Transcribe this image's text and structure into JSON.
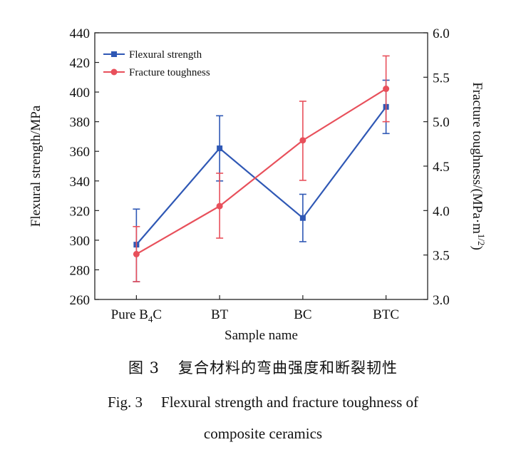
{
  "chart_data": {
    "type": "line",
    "categories": [
      "Pure B4C",
      "BT",
      "BC",
      "BTC"
    ],
    "category_labels": [
      {
        "main": "Pure B",
        "sub": "4",
        "tail": "C"
      },
      {
        "main": "BT",
        "sub": "",
        "tail": ""
      },
      {
        "main": "BC",
        "sub": "",
        "tail": ""
      },
      {
        "main": "BTC",
        "sub": "",
        "tail": ""
      }
    ],
    "xlabel": "Sample name",
    "ylabel_left": "Flexural strength/MPa",
    "ylabel_right": "Fracture toughness/(MPa·m",
    "ylabel_right_sup": "1/2",
    "ylabel_right_close": ")",
    "ylim_left": [
      260,
      440
    ],
    "yticks_left": [
      "260",
      "280",
      "300",
      "320",
      "340",
      "360",
      "380",
      "400",
      "420",
      "440"
    ],
    "ylim_right": [
      3.0,
      6.0
    ],
    "yticks_right": [
      "3.0",
      "3.5",
      "4.0",
      "4.5",
      "5.0",
      "5.5",
      "6.0"
    ],
    "series": [
      {
        "name": "Flexural strength",
        "axis": "left",
        "color": "#2f58b5",
        "marker": "square",
        "values": [
          297,
          362,
          315,
          390
        ],
        "err_low": [
          272,
          340,
          299,
          372
        ],
        "err_high": [
          321,
          384,
          331,
          408
        ]
      },
      {
        "name": "Fracture toughness",
        "axis": "right",
        "color": "#e8505b",
        "marker": "circle",
        "values": [
          3.51,
          4.05,
          4.79,
          5.37
        ],
        "err_low": [
          3.2,
          3.69,
          4.34,
          5.0
        ],
        "err_high": [
          3.82,
          4.42,
          5.23,
          5.74
        ]
      }
    ],
    "legend_position": "top-left",
    "grid": false
  },
  "caption": {
    "cn_number": "图 3",
    "cn_text": "复合材料的弯曲强度和断裂韧性",
    "en_number": "Fig. 3",
    "en_line1": "Flexural strength and fracture toughness of",
    "en_line2": "composite ceramics"
  }
}
